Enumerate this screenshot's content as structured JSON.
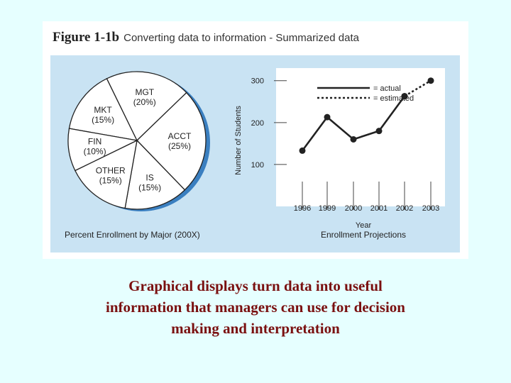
{
  "figure": {
    "number": "Figure 1-1b",
    "subtitle": "Converting data to information - Summarized data"
  },
  "chart_data": [
    {
      "type": "pie",
      "title": "Percent Enrollment by Major (200X)",
      "slices": [
        {
          "label": "MKT",
          "pct_text": "(15%)",
          "value": 15
        },
        {
          "label": "MGT",
          "pct_text": "(20%)",
          "value": 20
        },
        {
          "label": "ACCT",
          "pct_text": "(25%)",
          "value": 25
        },
        {
          "label": "IS",
          "pct_text": "(15%)",
          "value": 15
        },
        {
          "label": "OTHER",
          "pct_text": "(15%)",
          "value": 15
        },
        {
          "label": "FIN",
          "pct_text": "(10%)",
          "value": 10
        }
      ],
      "colors": {
        "fill": "#ffffff",
        "stroke": "#222222",
        "shadow": "#3a7fc0"
      }
    },
    {
      "type": "line",
      "title": "Enrollment Projections",
      "xlabel": "Year",
      "ylabel": "Number of Students",
      "categories": [
        "1996",
        "1999",
        "2000",
        "2001",
        "2002",
        "2003"
      ],
      "yticks": [
        "100",
        "200",
        "300"
      ],
      "ylim": [
        0,
        330
      ],
      "series": [
        {
          "name": "actual",
          "style": "solid",
          "x": [
            "1996",
            "1999",
            "2000",
            "2001",
            "2002"
          ],
          "values": [
            133,
            213,
            160,
            180,
            263
          ]
        },
        {
          "name": "estimated",
          "style": "dotted",
          "x": [
            "2002",
            "2003"
          ],
          "values": [
            263,
            300
          ]
        }
      ],
      "legend": "top-right",
      "colors": {
        "line": "#222222",
        "grid": "#444444",
        "plot_bg": "#ffffff"
      }
    }
  ],
  "caption": {
    "line1": "Graphical displays turn data into useful",
    "line2": "information that managers can use for decision",
    "line3": "making and interpretation"
  }
}
